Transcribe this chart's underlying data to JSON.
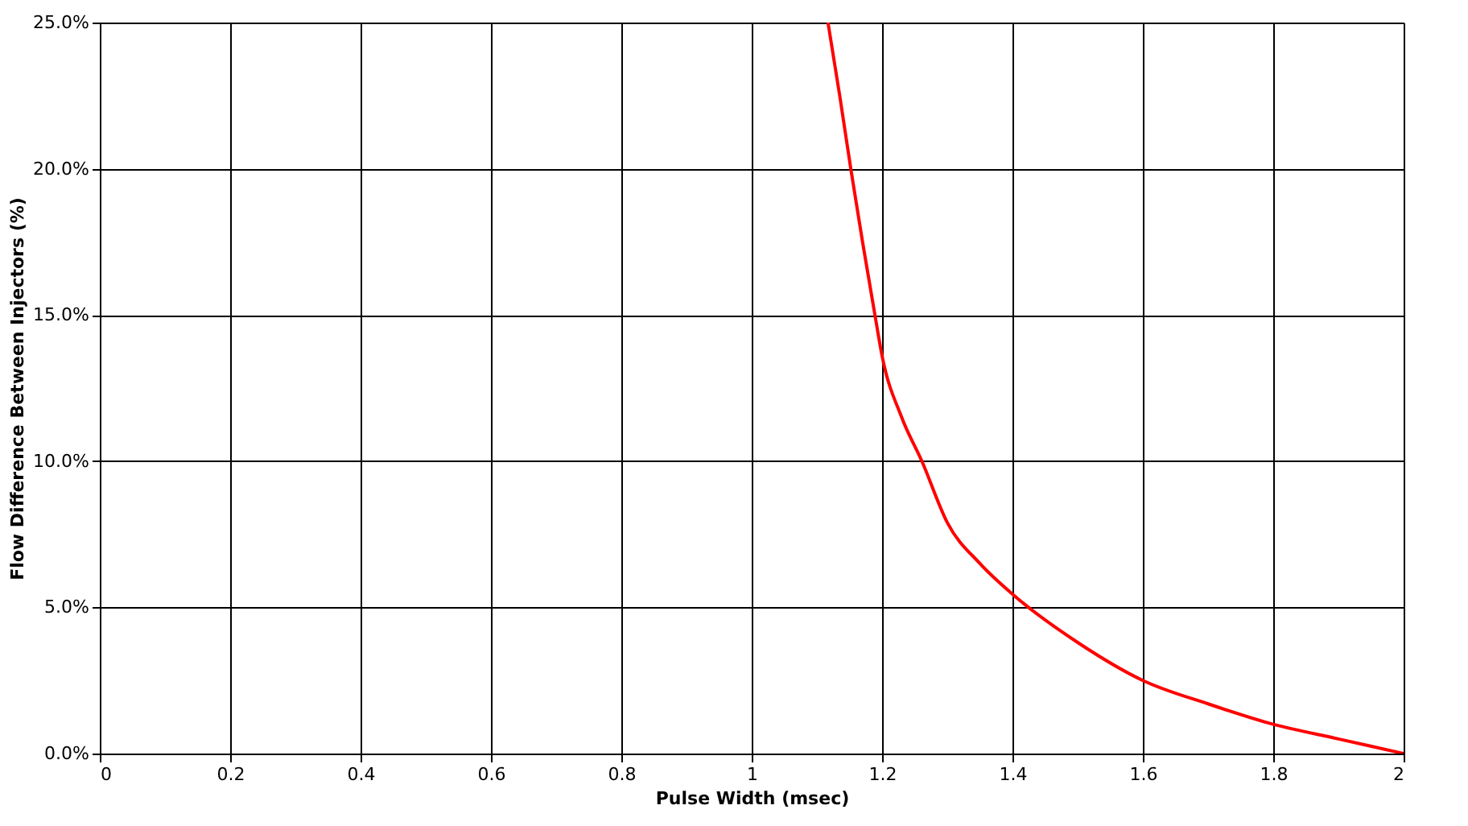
{
  "chart_data": {
    "type": "line",
    "xlabel": "Pulse Width (msec)",
    "ylabel": "Flow Difference Between Injectors (%)",
    "series": [
      {
        "color": "#ff0000",
        "x": [
          1.117,
          1.135,
          1.152,
          1.17,
          1.189,
          1.2,
          1.23,
          1.261,
          1.3,
          1.35,
          1.4,
          1.5,
          1.6,
          1.7,
          1.8,
          1.9,
          2.0
        ],
        "values": [
          25,
          22.5,
          20,
          17.5,
          15,
          13.6,
          11.5,
          10,
          7.9,
          6.5,
          5.45,
          3.8,
          2.5,
          1.7,
          1.0,
          0.5,
          0
        ]
      }
    ],
    "xlim": [
      0,
      2
    ],
    "xticks": [
      0,
      0.2,
      0.4,
      0.6,
      0.8,
      1,
      1.2,
      1.4,
      1.6,
      1.8,
      2
    ],
    "ylim": [
      0,
      25
    ],
    "yticks": [
      {
        "value": 0,
        "label": "0.0%"
      },
      {
        "value": 5,
        "label": "5.0%"
      },
      {
        "value": 10,
        "label": "10.0%"
      },
      {
        "value": 15,
        "label": "15.0%"
      },
      {
        "value": 20,
        "label": "20.0%"
      },
      {
        "value": 25,
        "label": "25.0%"
      }
    ],
    "grid": true,
    "marker": "none",
    "line_style": "solid"
  }
}
